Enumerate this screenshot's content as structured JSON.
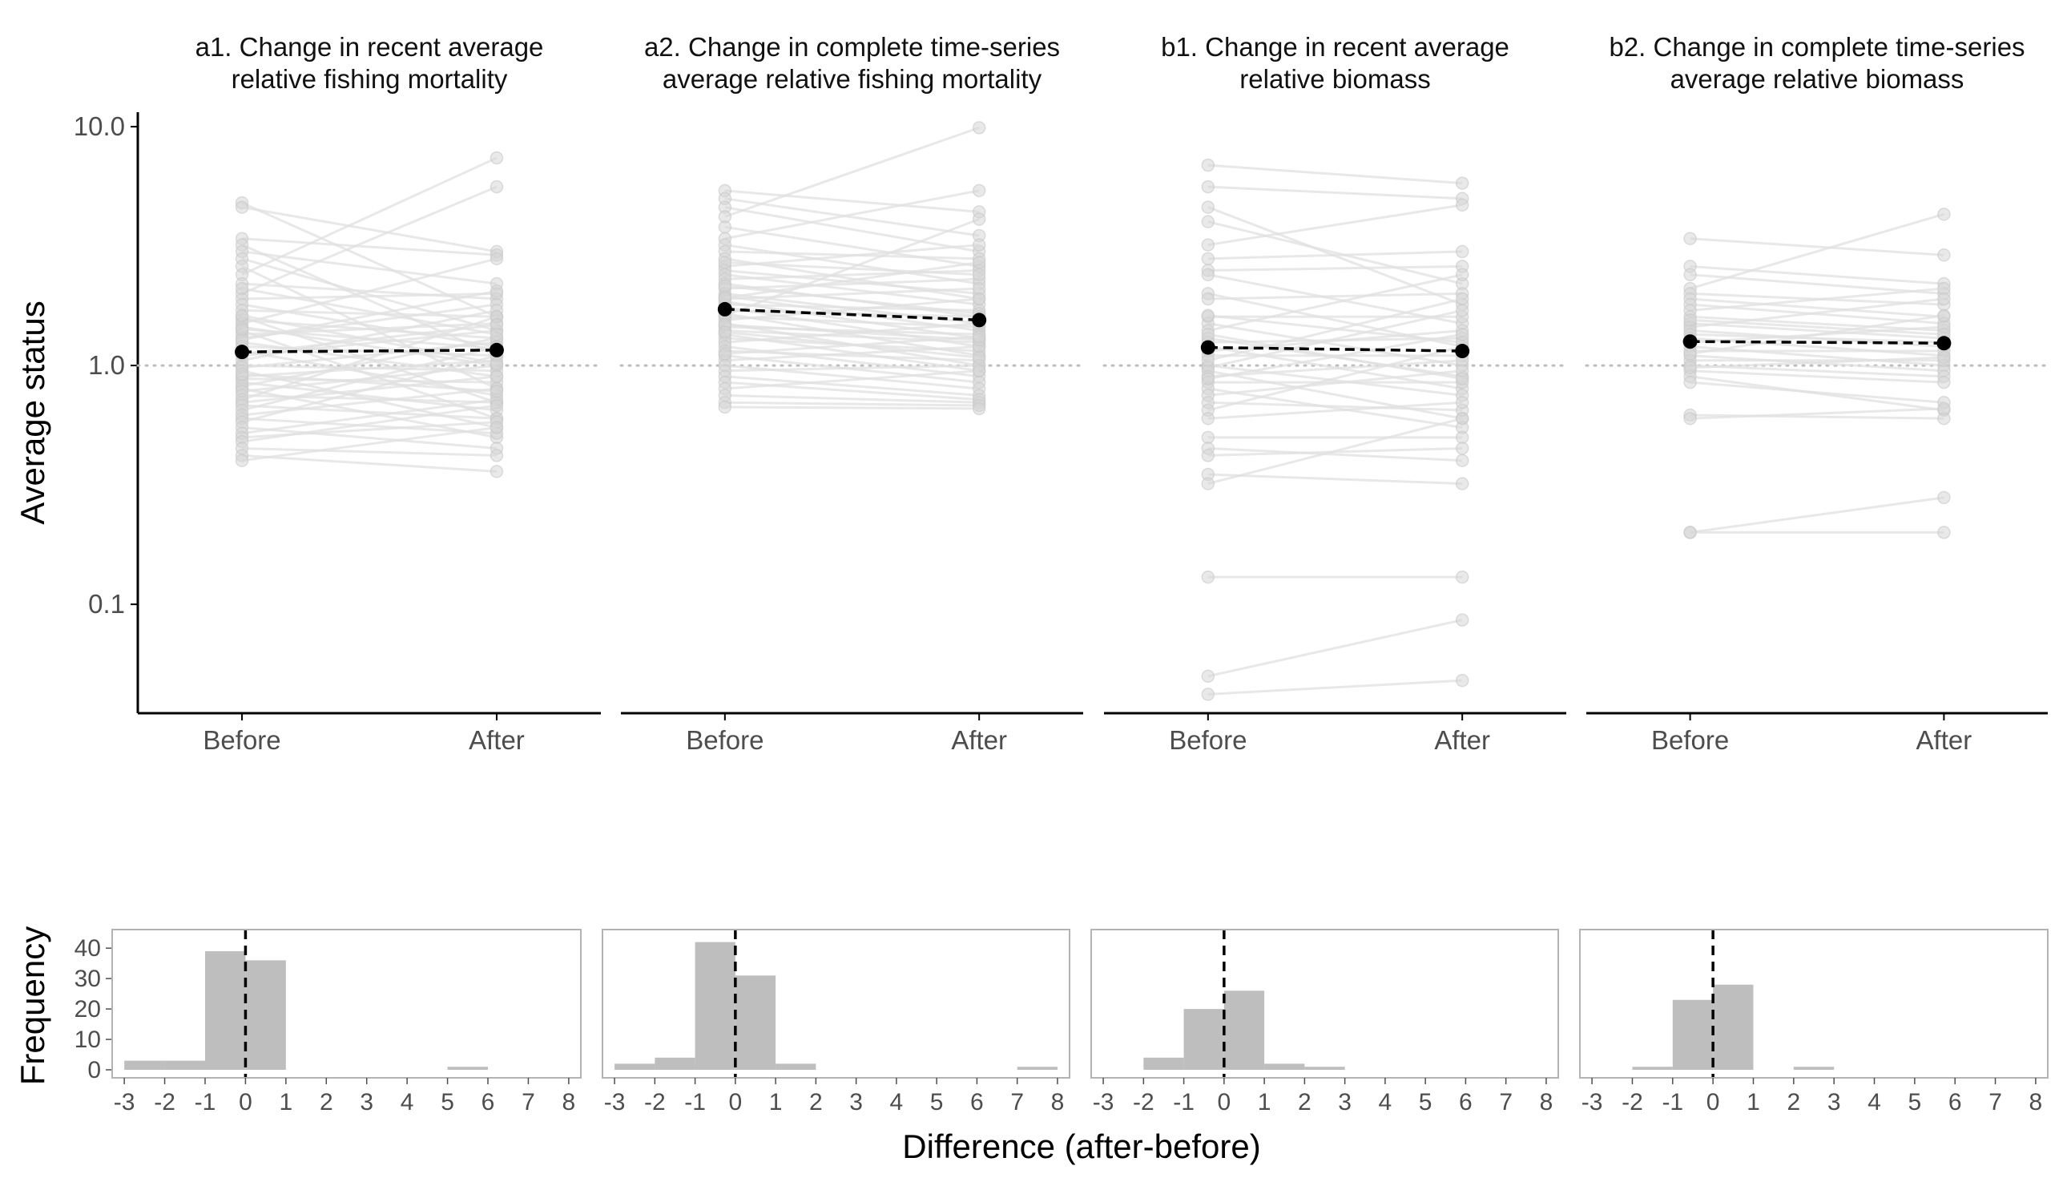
{
  "colors": {
    "pair_line": "#e0e0e0",
    "pair_point": "#d4d4d4",
    "mean": "#000000",
    "ref_line": "#bdbdbd",
    "hist_bar": "#bebebe",
    "hist_frame": "#b3b3b3",
    "axis": "#000000"
  },
  "labels": {
    "top_ylabel": "Average status",
    "hist_ylabel": "Frequency",
    "hist_xlabel": "Difference (after-before)"
  },
  "chart_data": [
    {
      "type": "line",
      "title": "a1. Change in recent average relative fishing mortality",
      "title_lines": [
        "a1. Change in recent average",
        "relative fishing mortality"
      ],
      "categories": [
        "Before",
        "After"
      ],
      "y_scale": "log10",
      "ylim": [
        0.035,
        11.5
      ],
      "y_ticks": [
        0.1,
        1.0,
        10.0
      ],
      "y_tick_labels": [
        "0.1",
        "1.0",
        "10.0"
      ],
      "reference_line": 1.0,
      "mean": {
        "before": 1.14,
        "after": 1.16
      },
      "pairs": [
        [
          4.8,
          1.6
        ],
        [
          4.6,
          3.0
        ],
        [
          3.4,
          2.9
        ],
        [
          3.2,
          1.1
        ],
        [
          3.0,
          2.2
        ],
        [
          2.8,
          1.4
        ],
        [
          2.6,
          0.8
        ],
        [
          2.4,
          7.4
        ],
        [
          2.2,
          1.9
        ],
        [
          2.0,
          5.6
        ],
        [
          1.9,
          2.0
        ],
        [
          1.8,
          1.2
        ],
        [
          1.7,
          1.6
        ],
        [
          1.6,
          0.7
        ],
        [
          1.55,
          1.3
        ],
        [
          1.5,
          2.8
        ],
        [
          1.45,
          1.0
        ],
        [
          1.4,
          0.6
        ],
        [
          1.35,
          1.5
        ],
        [
          1.3,
          1.8
        ],
        [
          1.25,
          0.9
        ],
        [
          1.2,
          1.1
        ],
        [
          1.15,
          0.75
        ],
        [
          1.1,
          1.4
        ],
        [
          1.05,
          1.7
        ],
        [
          1.0,
          0.95
        ],
        [
          0.98,
          1.25
        ],
        [
          0.95,
          0.55
        ],
        [
          0.9,
          1.05
        ],
        [
          0.88,
          0.85
        ],
        [
          0.85,
          0.65
        ],
        [
          0.82,
          1.3
        ],
        [
          0.8,
          0.5
        ],
        [
          0.78,
          1.0
        ],
        [
          0.75,
          0.7
        ],
        [
          0.72,
          1.6
        ],
        [
          0.7,
          0.9
        ],
        [
          0.68,
          0.6
        ],
        [
          0.65,
          1.2
        ],
        [
          0.62,
          0.8
        ],
        [
          0.6,
          0.52
        ],
        [
          0.58,
          1.1
        ],
        [
          0.55,
          0.45
        ],
        [
          0.52,
          0.72
        ],
        [
          0.5,
          0.58
        ],
        [
          0.48,
          0.68
        ],
        [
          0.45,
          0.42
        ],
        [
          0.42,
          0.36
        ],
        [
          0.4,
          0.55
        ],
        [
          1.12,
          1.48
        ],
        [
          1.28,
          2.05
        ],
        [
          1.42,
          1.18
        ],
        [
          0.92,
          0.78
        ],
        [
          2.1,
          1.35
        ],
        [
          1.62,
          1.02
        ]
      ]
    },
    {
      "type": "line",
      "title": "a2. Change in complete time-series average relative fishing mortality",
      "title_lines": [
        "a2. Change in complete time-series",
        "average relative fishing mortality"
      ],
      "categories": [
        "Before",
        "After"
      ],
      "y_scale": "log10",
      "ylim": [
        0.035,
        11.5
      ],
      "reference_line": 1.0,
      "mean": {
        "before": 1.72,
        "after": 1.55
      },
      "pairs": [
        [
          5.4,
          4.4
        ],
        [
          5.0,
          3.5
        ],
        [
          4.6,
          3.0
        ],
        [
          4.2,
          9.9
        ],
        [
          3.8,
          2.6
        ],
        [
          3.4,
          5.4
        ],
        [
          3.2,
          2.2
        ],
        [
          3.0,
          2.8
        ],
        [
          2.8,
          1.9
        ],
        [
          2.6,
          3.2
        ],
        [
          2.5,
          2.0
        ],
        [
          2.4,
          1.8
        ],
        [
          2.3,
          2.5
        ],
        [
          2.2,
          1.6
        ],
        [
          2.1,
          2.3
        ],
        [
          2.0,
          1.5
        ],
        [
          1.95,
          1.4
        ],
        [
          1.9,
          2.1
        ],
        [
          1.85,
          1.3
        ],
        [
          1.8,
          1.7
        ],
        [
          1.75,
          1.2
        ],
        [
          1.7,
          1.6
        ],
        [
          1.65,
          1.1
        ],
        [
          1.6,
          1.45
        ],
        [
          1.55,
          1.9
        ],
        [
          1.5,
          1.0
        ],
        [
          1.45,
          1.35
        ],
        [
          1.4,
          1.25
        ],
        [
          1.35,
          0.95
        ],
        [
          1.3,
          1.15
        ],
        [
          1.25,
          1.5
        ],
        [
          1.2,
          0.9
        ],
        [
          1.15,
          1.05
        ],
        [
          1.1,
          0.85
        ],
        [
          1.05,
          1.2
        ],
        [
          1.0,
          0.8
        ],
        [
          0.95,
          1.0
        ],
        [
          0.9,
          0.75
        ],
        [
          0.85,
          0.72
        ],
        [
          0.8,
          0.95
        ],
        [
          0.75,
          0.7
        ],
        [
          0.7,
          0.68
        ],
        [
          0.67,
          0.66
        ],
        [
          1.62,
          4.1
        ],
        [
          2.15,
          1.65
        ],
        [
          1.48,
          1.28
        ],
        [
          1.92,
          2.7
        ],
        [
          1.38,
          1.08
        ],
        [
          1.12,
          1.32
        ],
        [
          2.7,
          2.4
        ]
      ]
    },
    {
      "type": "line",
      "title": "b1. Change in recent average relative biomass",
      "title_lines": [
        "b1. Change in recent average",
        "relative biomass"
      ],
      "categories": [
        "Before",
        "After"
      ],
      "y_scale": "log10",
      "ylim": [
        0.035,
        11.5
      ],
      "reference_line": 1.0,
      "mean": {
        "before": 1.19,
        "after": 1.15
      },
      "pairs": [
        [
          6.9,
          5.8
        ],
        [
          5.6,
          5.0
        ],
        [
          4.6,
          1.8
        ],
        [
          4.0,
          2.2
        ],
        [
          3.2,
          4.7
        ],
        [
          2.8,
          3.0
        ],
        [
          2.5,
          2.6
        ],
        [
          2.4,
          1.5
        ],
        [
          2.0,
          1.2
        ],
        [
          1.9,
          2.0
        ],
        [
          1.6,
          1.6
        ],
        [
          1.5,
          1.0
        ],
        [
          1.4,
          2.4
        ],
        [
          1.3,
          0.9
        ],
        [
          1.25,
          1.3
        ],
        [
          1.2,
          0.8
        ],
        [
          1.15,
          1.4
        ],
        [
          1.1,
          1.1
        ],
        [
          1.0,
          0.75
        ],
        [
          0.98,
          1.7
        ],
        [
          0.95,
          0.6
        ],
        [
          0.9,
          1.05
        ],
        [
          0.85,
          0.85
        ],
        [
          0.8,
          0.55
        ],
        [
          0.75,
          0.95
        ],
        [
          0.7,
          0.65
        ],
        [
          0.65,
          1.2
        ],
        [
          0.6,
          0.7
        ],
        [
          0.5,
          0.5
        ],
        [
          0.45,
          0.4
        ],
        [
          0.42,
          0.45
        ],
        [
          0.35,
          0.32
        ],
        [
          0.32,
          0.6
        ],
        [
          0.13,
          0.13
        ],
        [
          0.05,
          0.086
        ],
        [
          0.042,
          0.048
        ],
        [
          1.05,
          1.9
        ],
        [
          1.35,
          0.88
        ],
        [
          1.62,
          1.25
        ],
        [
          0.88,
          1.35
        ]
      ]
    },
    {
      "type": "line",
      "title": "b2. Change in complete time-series average relative biomass",
      "title_lines": [
        "b2. Change in complete time-series",
        "average relative biomass"
      ],
      "categories": [
        "Before",
        "After"
      ],
      "y_scale": "log10",
      "ylim": [
        0.035,
        11.5
      ],
      "reference_line": 1.0,
      "mean": {
        "before": 1.26,
        "after": 1.24
      },
      "pairs": [
        [
          3.4,
          2.9
        ],
        [
          2.6,
          2.2
        ],
        [
          2.4,
          2.0
        ],
        [
          2.1,
          4.3
        ],
        [
          2.0,
          1.8
        ],
        [
          1.9,
          1.6
        ],
        [
          1.8,
          1.5
        ],
        [
          1.7,
          2.1
        ],
        [
          1.6,
          1.4
        ],
        [
          1.5,
          1.3
        ],
        [
          1.45,
          1.9
        ],
        [
          1.4,
          1.2
        ],
        [
          1.35,
          1.25
        ],
        [
          1.3,
          1.1
        ],
        [
          1.25,
          1.45
        ],
        [
          1.2,
          1.0
        ],
        [
          1.15,
          1.15
        ],
        [
          1.1,
          0.95
        ],
        [
          1.05,
          1.05
        ],
        [
          1.0,
          0.9
        ],
        [
          0.95,
          0.85
        ],
        [
          0.9,
          0.65
        ],
        [
          0.85,
          0.7
        ],
        [
          0.62,
          0.6
        ],
        [
          0.6,
          0.66
        ],
        [
          0.2,
          0.28
        ],
        [
          0.2,
          0.2
        ],
        [
          1.55,
          1.35
        ],
        [
          1.12,
          1.62
        ],
        [
          0.98,
          1.08
        ]
      ]
    },
    {
      "type": "bar",
      "x_ticks": [
        -3,
        -2,
        -1,
        0,
        1,
        2,
        3,
        4,
        5,
        6,
        7,
        8
      ],
      "xlim": [
        -3.3,
        8.3
      ],
      "y_ticks": [
        0,
        10,
        20,
        30,
        40
      ],
      "ylim": [
        0,
        44
      ],
      "reference_line": 0,
      "bins": [
        [
          -3,
          -2,
          3
        ],
        [
          -2,
          -1,
          3
        ],
        [
          -1,
          0,
          39
        ],
        [
          0,
          1,
          36
        ],
        [
          5,
          6,
          1
        ]
      ]
    },
    {
      "type": "bar",
      "x_ticks": [
        -3,
        -2,
        -1,
        0,
        1,
        2,
        3,
        4,
        5,
        6,
        7,
        8
      ],
      "xlim": [
        -3.3,
        8.3
      ],
      "ylim": [
        0,
        44
      ],
      "reference_line": 0,
      "bins": [
        [
          -3,
          -2,
          2
        ],
        [
          -2,
          -1,
          4
        ],
        [
          -1,
          0,
          42
        ],
        [
          0,
          1,
          31
        ],
        [
          1,
          2,
          2
        ],
        [
          7,
          8,
          1
        ]
      ]
    },
    {
      "type": "bar",
      "x_ticks": [
        -3,
        -2,
        -1,
        0,
        1,
        2,
        3,
        4,
        5,
        6,
        7,
        8
      ],
      "xlim": [
        -3.3,
        8.3
      ],
      "ylim": [
        0,
        44
      ],
      "reference_line": 0,
      "bins": [
        [
          -2,
          -1,
          4
        ],
        [
          -1,
          0,
          20
        ],
        [
          0,
          1,
          26
        ],
        [
          1,
          2,
          2
        ],
        [
          2,
          3,
          1
        ]
      ]
    },
    {
      "type": "bar",
      "x_ticks": [
        -3,
        -2,
        -1,
        0,
        1,
        2,
        3,
        4,
        5,
        6,
        7,
        8
      ],
      "xlim": [
        -3.3,
        8.3
      ],
      "ylim": [
        0,
        44
      ],
      "reference_line": 0,
      "bins": [
        [
          -2,
          -1,
          1
        ],
        [
          -1,
          0,
          23
        ],
        [
          0,
          1,
          28
        ],
        [
          2,
          3,
          1
        ]
      ]
    }
  ]
}
